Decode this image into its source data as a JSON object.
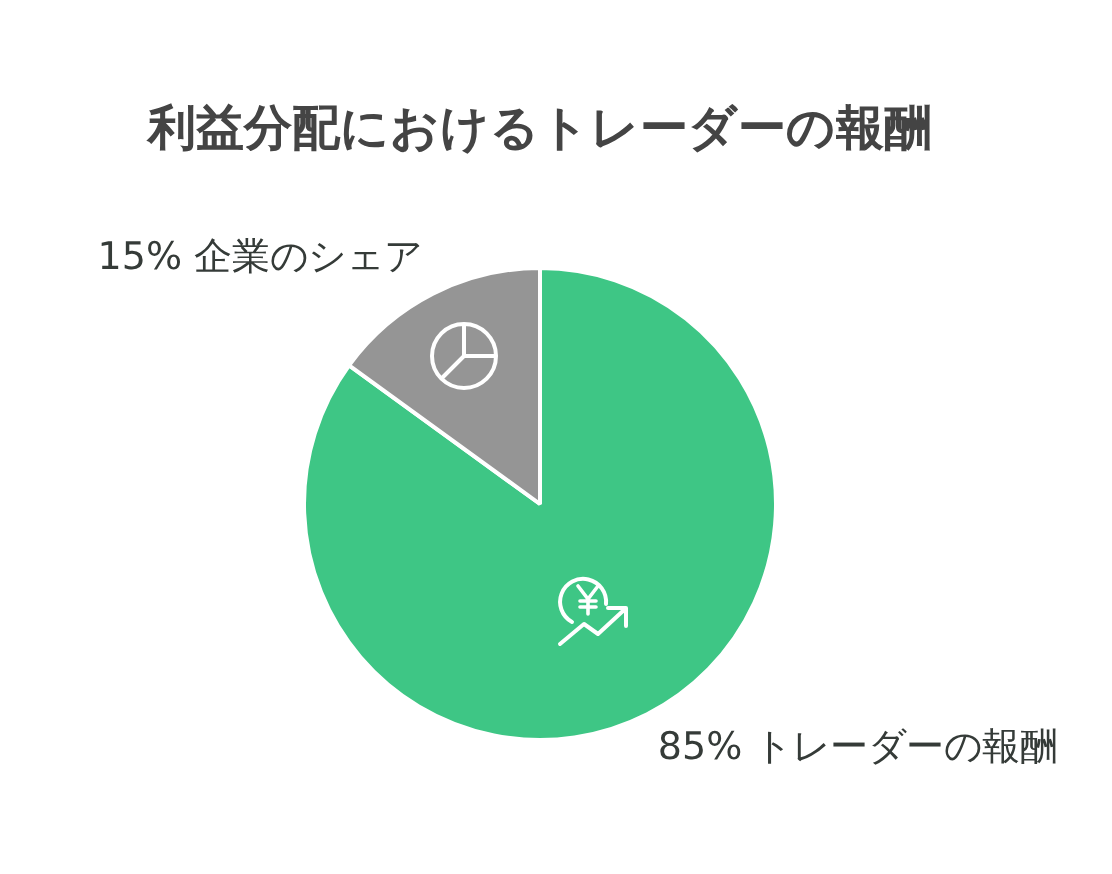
{
  "chart_data": {
    "type": "pie",
    "title": "利益分配におけるトレーダーの報酬",
    "categories": [
      "トレーダーの報酬",
      "企業のシェア"
    ],
    "values": [
      85,
      15
    ],
    "colors": [
      "#3ec685",
      "#959595"
    ],
    "value_labels": [
      "85%",
      "15%"
    ],
    "legend": false
  }
}
